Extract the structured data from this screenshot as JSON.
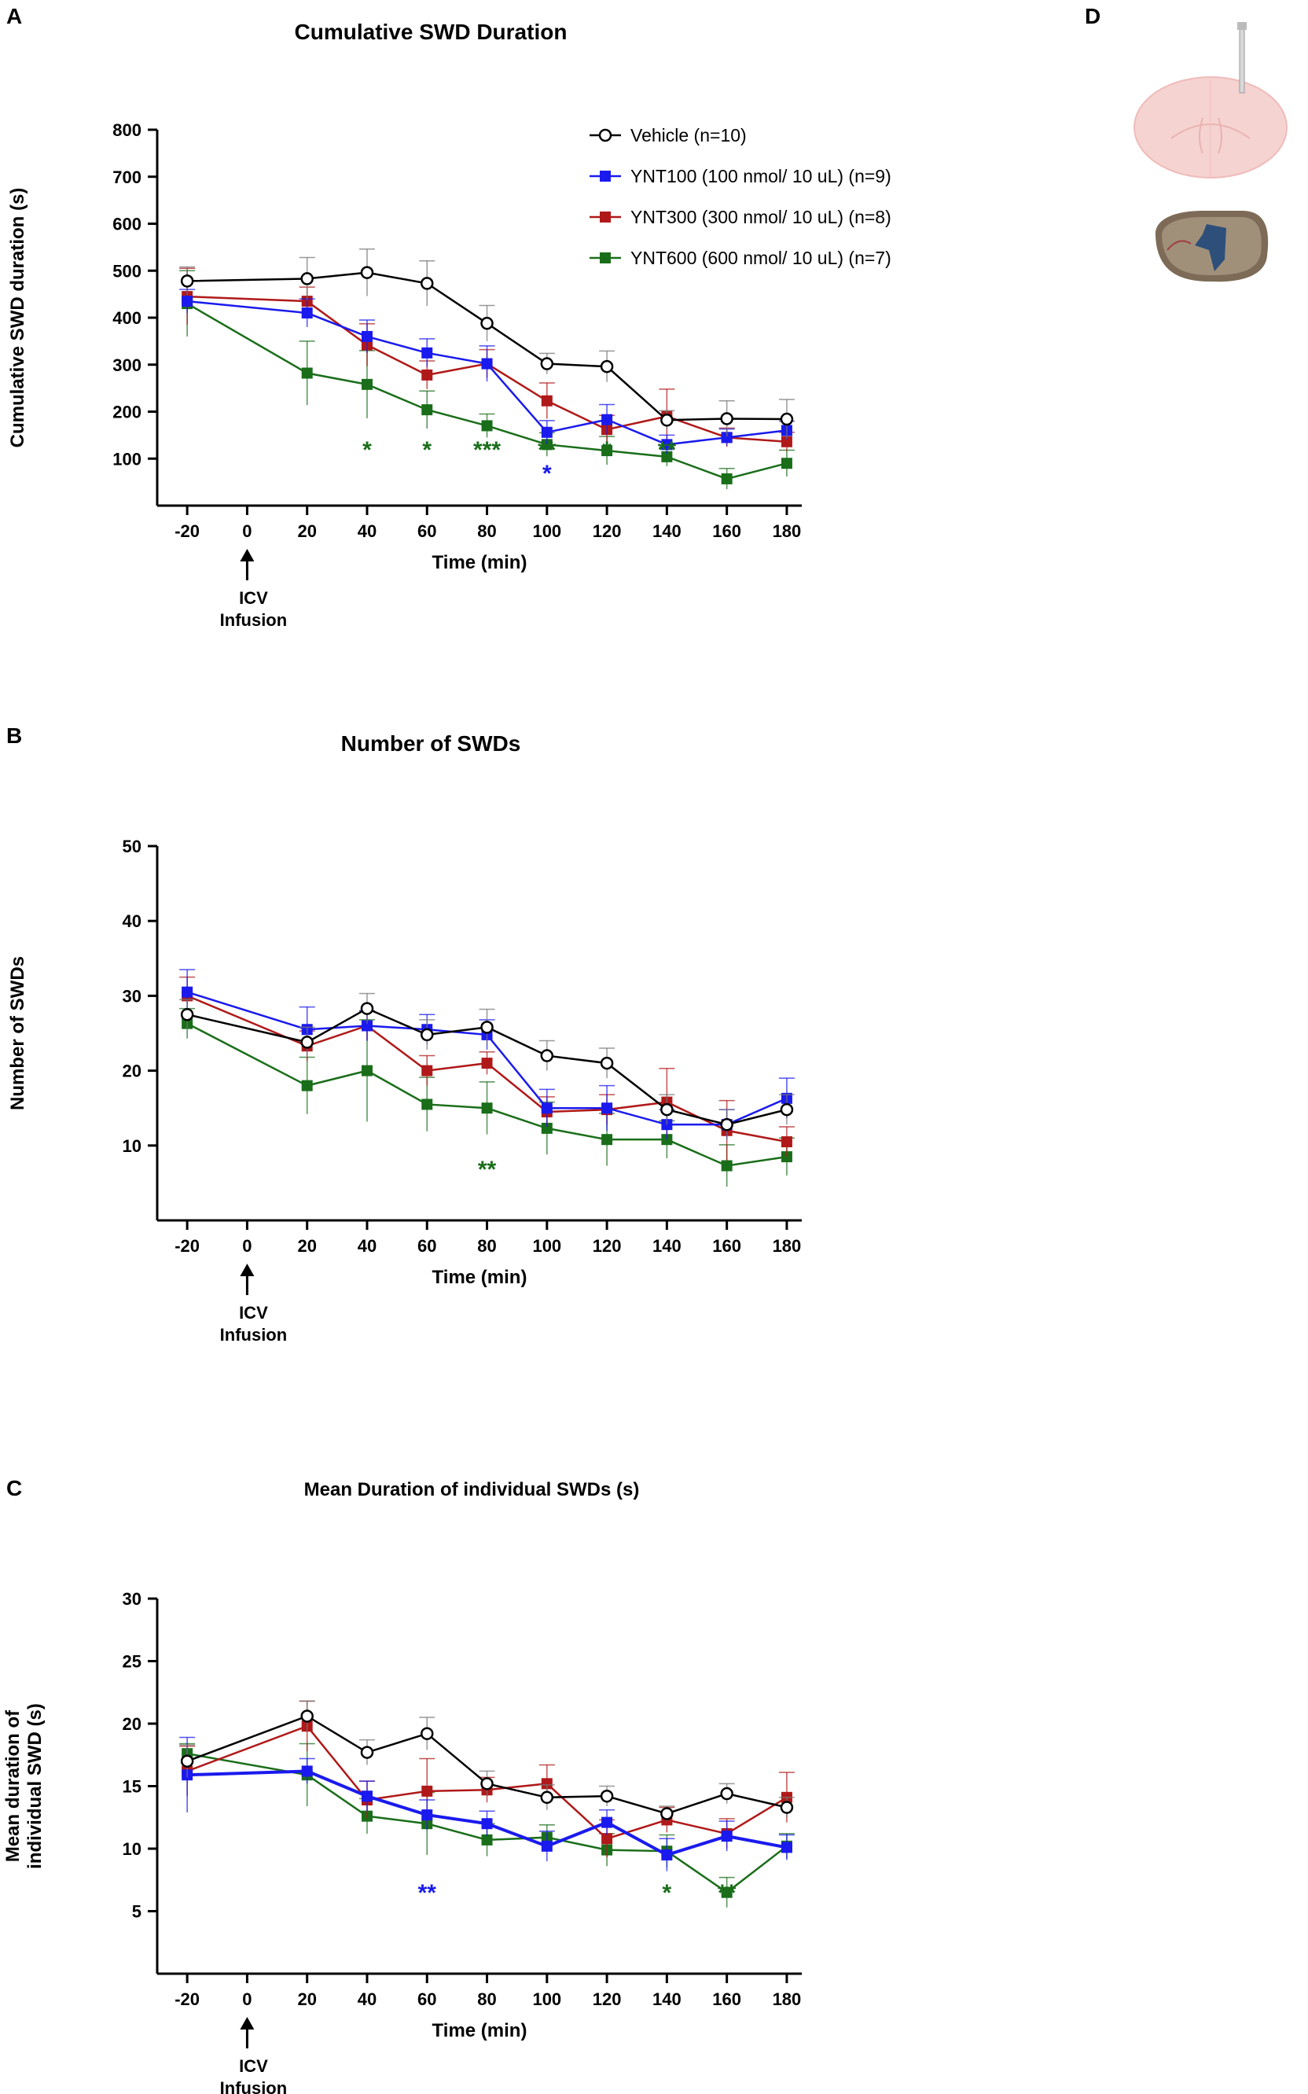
{
  "figure": {
    "panel_d_label": "D"
  },
  "chart_data": [
    {
      "panel": "A",
      "type": "line",
      "title": "Cumulative SWD Duration",
      "xlabel": "Time (min)",
      "ylabel": "Cumulative SWD duration (s)",
      "x": [
        -20,
        20,
        40,
        60,
        80,
        100,
        120,
        140,
        160,
        180
      ],
      "x_ticks": [
        "-20",
        "0",
        "20",
        "40",
        "60",
        "80",
        "100",
        "120",
        "140",
        "160",
        "180"
      ],
      "y_ticks": [
        "100",
        "200",
        "300",
        "400",
        "500",
        "600",
        "700",
        "800"
      ],
      "xlim": [
        -30,
        185
      ],
      "ylim": [
        0,
        800
      ],
      "infusion_label": [
        "ICV",
        "Infusion"
      ],
      "legend": {
        "placement": "top-right",
        "entries": [
          "Vehicle (n=10)",
          "YNT100 (100 nmol/ 10 uL) (n=9)",
          "YNT300 (300 nmol/ 10 uL) (n=8)",
          "YNT600 (600 nmol/ 10 uL) (n=7)"
        ]
      },
      "series": [
        {
          "name": "Vehicle (n=10)",
          "color": "#000000",
          "marker": "open-circle",
          "values": [
            478,
            483,
            496,
            473,
            388,
            302,
            296,
            182,
            185,
            184
          ],
          "errors": [
            30,
            45,
            50,
            48,
            38,
            22,
            33,
            20,
            38,
            42
          ]
        },
        {
          "name": "YNT100 (100 nmol/ 10 uL) (n=9)",
          "color": "#1a1aee",
          "marker": "square",
          "values": [
            435,
            410,
            360,
            325,
            302,
            156,
            183,
            130,
            145,
            160
          ],
          "errors": [
            25,
            30,
            35,
            30,
            38,
            25,
            32,
            20,
            18,
            20
          ]
        },
        {
          "name": "YNT300 (300 nmol/ 10 uL) (n=8)",
          "color": "#b01919",
          "marker": "square",
          "values": [
            445,
            435,
            342,
            278,
            302,
            223,
            162,
            190,
            145,
            136
          ],
          "errors": [
            60,
            30,
            45,
            30,
            30,
            38,
            30,
            58,
            20,
            20
          ]
        },
        {
          "name": "YNT600 (600 nmol/ 10 uL) (n=7)",
          "color": "#1a6e1a",
          "marker": "square",
          "values": [
            430,
            282,
            258,
            204,
            170,
            130,
            117,
            104,
            57,
            90
          ],
          "errors": [
            70,
            68,
            72,
            40,
            25,
            25,
            30,
            20,
            22,
            28
          ]
        }
      ],
      "annotations": [
        {
          "x": 40,
          "text": "*",
          "color": "#1a6e1a",
          "row": 0
        },
        {
          "x": 60,
          "text": "*",
          "color": "#1a6e1a",
          "row": 0
        },
        {
          "x": 80,
          "text": "***",
          "color": "#1a6e1a",
          "row": 0
        },
        {
          "x": 100,
          "text": "**",
          "color": "#1a6e1a",
          "row": 0
        },
        {
          "x": 100,
          "text": "*",
          "color": "#1a1aee",
          "row": 1
        },
        {
          "x": 120,
          "text": "*",
          "color": "#1a6e1a",
          "row": 0
        },
        {
          "x": 140,
          "text": "**",
          "color": "#1a6e1a",
          "row": 0
        }
      ]
    },
    {
      "panel": "B",
      "type": "line",
      "title": "Number of SWDs",
      "xlabel": "Time (min)",
      "ylabel": "Number of SWDs",
      "x": [
        -20,
        20,
        40,
        60,
        80,
        100,
        120,
        140,
        160,
        180
      ],
      "x_ticks": [
        "-20",
        "0",
        "20",
        "40",
        "60",
        "80",
        "100",
        "120",
        "140",
        "160",
        "180"
      ],
      "y_ticks": [
        "10",
        "20",
        "30",
        "40",
        "50"
      ],
      "xlim": [
        -30,
        185
      ],
      "ylim": [
        0,
        50
      ],
      "infusion_label": [
        "ICV",
        "Infusion"
      ],
      "series": [
        {
          "name": "Vehicle (n=10)",
          "color": "#000000",
          "marker": "open-circle",
          "values": [
            27.5,
            23.8,
            28.3,
            24.8,
            25.8,
            22.0,
            21.0,
            14.8,
            12.8,
            14.8
          ],
          "errors": [
            2.0,
            2.0,
            2.0,
            2.0,
            2.4,
            2.0,
            2.0,
            2.0,
            2.0,
            2.0
          ]
        },
        {
          "name": "YNT100 (100 nmol/ 10 uL) (n=9)",
          "color": "#1a1aee",
          "marker": "square",
          "values": [
            30.5,
            25.5,
            26.0,
            25.5,
            24.8,
            15.0,
            15.0,
            12.8,
            12.8,
            16.3
          ],
          "errors": [
            3.0,
            3.0,
            2.0,
            2.0,
            2.0,
            2.5,
            3.0,
            2.0,
            2.0,
            2.7
          ]
        },
        {
          "name": "YNT300 (300 nmol/ 10 uL) (n=8)",
          "color": "#b01919",
          "marker": "square",
          "values": [
            30.0,
            23.3,
            26.0,
            20.0,
            21.0,
            14.5,
            14.8,
            15.8,
            12.0,
            10.5
          ],
          "errors": [
            2.5,
            2.0,
            2.0,
            2.0,
            1.5,
            2.0,
            2.0,
            4.5,
            4.0,
            2.0
          ]
        },
        {
          "name": "YNT600 (600 nmol/ 10 uL) (n=7)",
          "color": "#1a6e1a",
          "marker": "square",
          "values": [
            26.3,
            18.0,
            20.0,
            15.5,
            15.0,
            12.3,
            10.8,
            10.8,
            7.3,
            8.5
          ],
          "errors": [
            2.0,
            3.8,
            6.8,
            3.6,
            3.5,
            3.5,
            3.5,
            2.5,
            2.8,
            2.5
          ]
        }
      ],
      "annotations": [
        {
          "x": 80,
          "text": "**",
          "color": "#1a6e1a",
          "row": 0
        }
      ]
    },
    {
      "panel": "C",
      "type": "line",
      "title": "Mean Duration of individual SWDs (s)",
      "xlabel": "Time (min)",
      "ylabel": [
        "Mean duration of",
        "individual SWD (s)"
      ],
      "x": [
        -20,
        20,
        40,
        60,
        80,
        100,
        120,
        140,
        160,
        180
      ],
      "x_ticks": [
        "-20",
        "0",
        "20",
        "40",
        "60",
        "80",
        "100",
        "120",
        "140",
        "160",
        "180"
      ],
      "y_ticks": [
        "5",
        "10",
        "15",
        "20",
        "25",
        "30"
      ],
      "xlim": [
        -30,
        185
      ],
      "ylim": [
        0,
        30
      ],
      "infusion_label": [
        "ICV",
        "Infusion"
      ],
      "series": [
        {
          "name": "Vehicle (n=10)",
          "color": "#000000",
          "marker": "open-circle",
          "values": [
            17.0,
            20.6,
            17.7,
            19.2,
            15.2,
            14.1,
            14.2,
            12.8,
            14.4,
            13.3
          ],
          "errors": [
            1.3,
            1.2,
            1.0,
            1.3,
            1.0,
            1.0,
            0.8,
            0.6,
            0.8,
            0.8
          ]
        },
        {
          "name": "YNT100 (100 nmol/ 10 uL) (n=9)",
          "color": "#1a1aee",
          "marker": "square",
          "values": [
            15.9,
            16.2,
            14.2,
            12.7,
            12.0,
            10.2,
            12.1,
            9.5,
            11.0,
            10.1
          ],
          "errors": [
            3.0,
            1.0,
            1.2,
            1.2,
            1.0,
            1.2,
            1.0,
            1.3,
            1.2,
            1.0
          ]
        },
        {
          "name": "YNT300 (300 nmol/ 10 uL) (n=8)",
          "color": "#b01919",
          "marker": "square",
          "values": [
            16.2,
            19.8,
            13.9,
            14.6,
            14.7,
            15.2,
            10.8,
            12.3,
            11.2,
            14.1
          ],
          "errors": [
            2.0,
            2.0,
            1.5,
            2.6,
            1.0,
            1.5,
            1.5,
            1.0,
            1.2,
            2.0
          ]
        },
        {
          "name": "YNT600 (600 nmol/ 10 uL) (n=7)",
          "color": "#1a6e1a",
          "marker": "square",
          "values": [
            17.6,
            15.9,
            12.6,
            12.0,
            10.7,
            10.9,
            9.9,
            9.8,
            6.5,
            10.2
          ],
          "errors": [
            0.8,
            2.5,
            1.4,
            2.5,
            1.3,
            1.0,
            1.3,
            1.3,
            1.2,
            1.0
          ]
        }
      ],
      "annotations": [
        {
          "x": 60,
          "text": "**",
          "color": "#1a1aee",
          "row": 0
        },
        {
          "x": 140,
          "text": "*",
          "color": "#1a6e1a",
          "row": 0
        },
        {
          "x": 160,
          "text": "**",
          "color": "#1a6e1a",
          "row": 0
        }
      ]
    }
  ]
}
